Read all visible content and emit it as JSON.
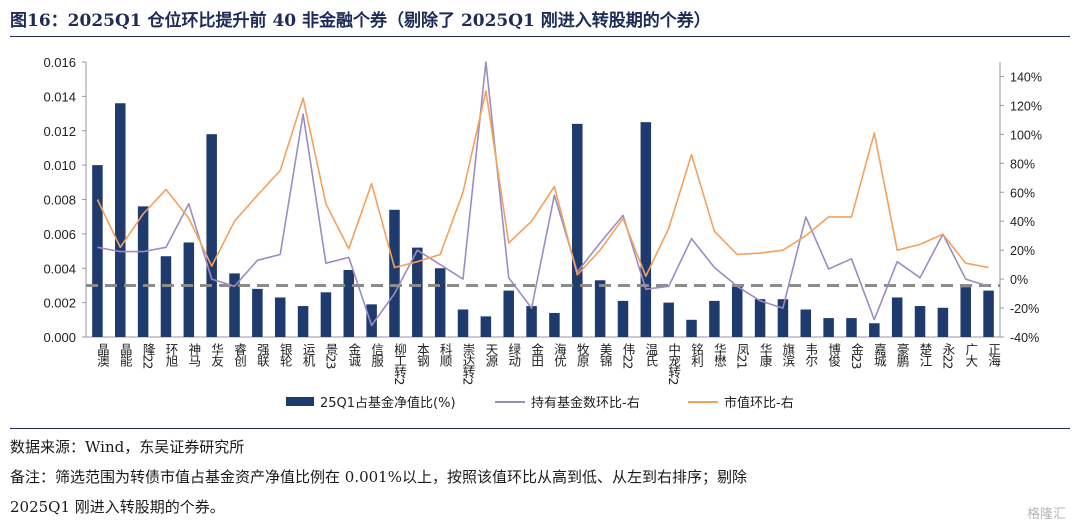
{
  "header": {
    "title": "图16：2025Q1 仓位环比提升前 40 非金融个券（剔除了 2025Q1 刚进入转股期的个券）"
  },
  "footer": {
    "source": "数据来源：Wind，东吴证券研究所",
    "note_line1": "备注：筛选范围为转债市值占基金资产净值比例在 0.001%以上，按照该值环比从高到低、从左到右排序；剔除",
    "note_line2": "2025Q1 刚进入转股期的个券。",
    "watermark": "格隆汇"
  },
  "colors": {
    "bar": "#1f3a6d",
    "fund_count_line": "#9b8cc4",
    "market_value_line": "#f2a25c",
    "dashed_line": "#8c8c8c"
  },
  "chart_data": {
    "type": "bar",
    "categories": [
      "晶澳",
      "晶能",
      "隆22",
      "环旭",
      "神马",
      "华友",
      "睿创",
      "强联",
      "银轮",
      "运机",
      "景23",
      "金诚",
      "信服",
      "柳工转2",
      "本钢",
      "科顺",
      "崇达转2",
      "天源",
      "绿动",
      "金田",
      "海优",
      "牧原",
      "美锦",
      "伟22",
      "温氏",
      "中宠转2",
      "铭利",
      "华懋",
      "凤21",
      "华康",
      "旗滨",
      "韦尔",
      "博俊",
      "金23",
      "嘉城",
      "豪鹏",
      "楚江",
      "永22",
      "广大",
      "正海"
    ],
    "series": [
      {
        "name": "25Q1占基金净值比(%)",
        "axis": "left",
        "type": "bar",
        "values": [
          0.01,
          0.0136,
          0.0076,
          0.0047,
          0.0055,
          0.0118,
          0.0037,
          0.0028,
          0.0023,
          0.0018,
          0.0026,
          0.0039,
          0.0019,
          0.0074,
          0.0052,
          0.004,
          0.0016,
          0.0012,
          0.0027,
          0.0018,
          0.0014,
          0.0124,
          0.0033,
          0.0021,
          0.0125,
          0.002,
          0.001,
          0.0021,
          0.003,
          0.0022,
          0.0022,
          0.0016,
          0.0011,
          0.0011,
          0.0008,
          0.0023,
          0.0018,
          0.0017,
          0.0029,
          0.0027
        ]
      },
      {
        "name": "持有基金数环比-右",
        "axis": "right",
        "type": "line",
        "values": [
          0.22,
          0.19,
          0.19,
          0.22,
          0.52,
          0.0,
          -0.05,
          0.13,
          0.17,
          1.14,
          0.11,
          0.15,
          -0.32,
          -0.1,
          0.2,
          0.1,
          0.0,
          1.5,
          0.01,
          -0.2,
          0.58,
          0.05,
          0.25,
          0.44,
          -0.07,
          -0.05,
          0.28,
          0.08,
          -0.05,
          -0.15,
          -0.2,
          0.43,
          0.07,
          0.14,
          -0.28,
          0.12,
          0.01,
          0.31,
          0.0,
          -0.05
        ]
      },
      {
        "name": "市值环比-右",
        "axis": "right",
        "type": "line",
        "values": [
          0.55,
          0.22,
          0.45,
          0.62,
          0.42,
          0.09,
          0.4,
          0.58,
          0.75,
          1.25,
          0.52,
          0.21,
          0.66,
          0.08,
          0.12,
          0.17,
          0.6,
          1.3,
          0.25,
          0.4,
          0.64,
          0.03,
          0.2,
          0.42,
          0.02,
          0.35,
          0.86,
          0.33,
          0.17,
          0.18,
          0.2,
          0.3,
          0.43,
          0.43,
          1.01,
          0.2,
          0.24,
          0.31,
          0.11,
          0.08
        ]
      }
    ],
    "y_left": {
      "min": 0,
      "max": 0.016,
      "ticks": [
        "0.000",
        "0.002",
        "0.004",
        "0.006",
        "0.008",
        "0.010",
        "0.012",
        "0.014",
        "0.016"
      ]
    },
    "y_right": {
      "min": -0.4,
      "max": 1.5,
      "ticks": [
        "-40%",
        "-20%",
        "0%",
        "20%",
        "40%",
        "60%",
        "80%",
        "100%",
        "120%",
        "140%"
      ]
    },
    "reference_line": {
      "axis": "left",
      "value": 0.003,
      "style": "dashed"
    },
    "legend": {
      "placement": "bottom"
    },
    "grid": false
  }
}
